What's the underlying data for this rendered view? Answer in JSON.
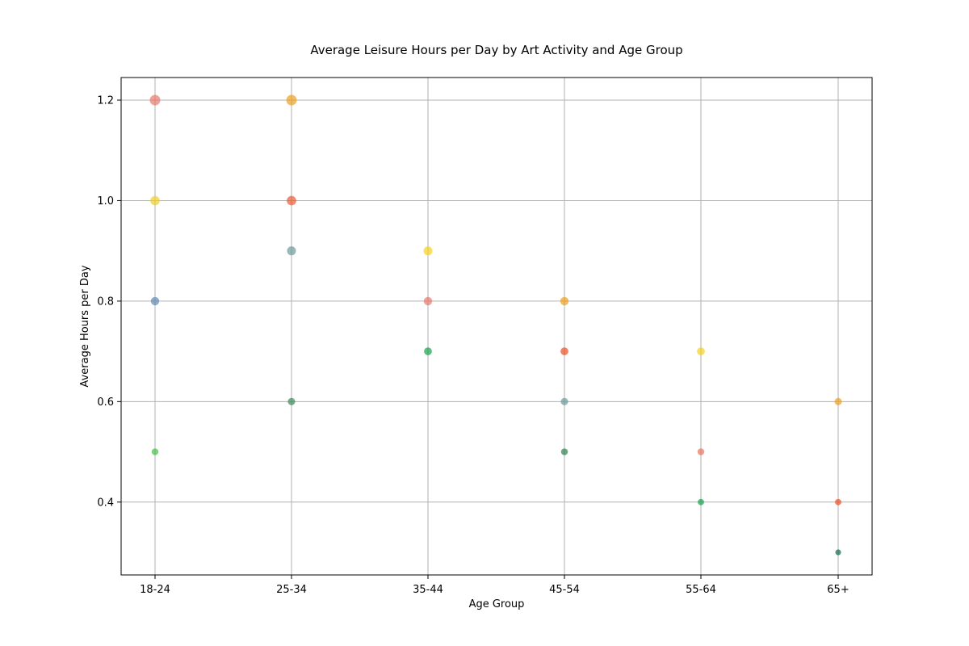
{
  "chart_data": {
    "type": "scatter",
    "title": "Average Leisure Hours per Day by Art Activity and Age Group",
    "xlabel": "Age Group",
    "ylabel": "Average Hours per Day",
    "categories": [
      "18-24",
      "25-34",
      "35-44",
      "45-54",
      "55-64",
      "65+"
    ],
    "yticks": [
      0.4,
      0.6,
      0.8,
      1.0,
      1.2
    ],
    "ylim": [
      0.255,
      1.245
    ],
    "grid": true,
    "legend": "none",
    "point_size_encodes": "y value",
    "points": [
      {
        "x": "18-24",
        "y": 1.2,
        "color": "#e8776b"
      },
      {
        "x": "18-24",
        "y": 1.0,
        "color": "#f1cf2a"
      },
      {
        "x": "18-24",
        "y": 0.8,
        "color": "#5f8ab5"
      },
      {
        "x": "18-24",
        "y": 0.5,
        "color": "#47bd47"
      },
      {
        "x": "25-34",
        "y": 1.2,
        "color": "#f0a020"
      },
      {
        "x": "25-34",
        "y": 1.0,
        "color": "#e95a32"
      },
      {
        "x": "25-34",
        "y": 0.9,
        "color": "#6a9a9a"
      },
      {
        "x": "25-34",
        "y": 0.6,
        "color": "#3b8a5a"
      },
      {
        "x": "35-44",
        "y": 0.9,
        "color": "#f5d21c"
      },
      {
        "x": "35-44",
        "y": 0.8,
        "color": "#e8776b"
      },
      {
        "x": "35-44",
        "y": 0.7,
        "color": "#16a34a"
      },
      {
        "x": "45-54",
        "y": 0.8,
        "color": "#f0a020"
      },
      {
        "x": "45-54",
        "y": 0.7,
        "color": "#ee4e22"
      },
      {
        "x": "45-54",
        "y": 0.6,
        "color": "#6a9a9a"
      },
      {
        "x": "45-54",
        "y": 0.5,
        "color": "#2f7f4f"
      },
      {
        "x": "55-64",
        "y": 0.7,
        "color": "#f5d21c"
      },
      {
        "x": "55-64",
        "y": 0.5,
        "color": "#ec7060"
      },
      {
        "x": "55-64",
        "y": 0.4,
        "color": "#16a34a"
      },
      {
        "x": "65+",
        "y": 0.6,
        "color": "#f0a020"
      },
      {
        "x": "65+",
        "y": 0.4,
        "color": "#ee4e22"
      },
      {
        "x": "65+",
        "y": 0.3,
        "color": "#0f6a4a"
      }
    ]
  }
}
